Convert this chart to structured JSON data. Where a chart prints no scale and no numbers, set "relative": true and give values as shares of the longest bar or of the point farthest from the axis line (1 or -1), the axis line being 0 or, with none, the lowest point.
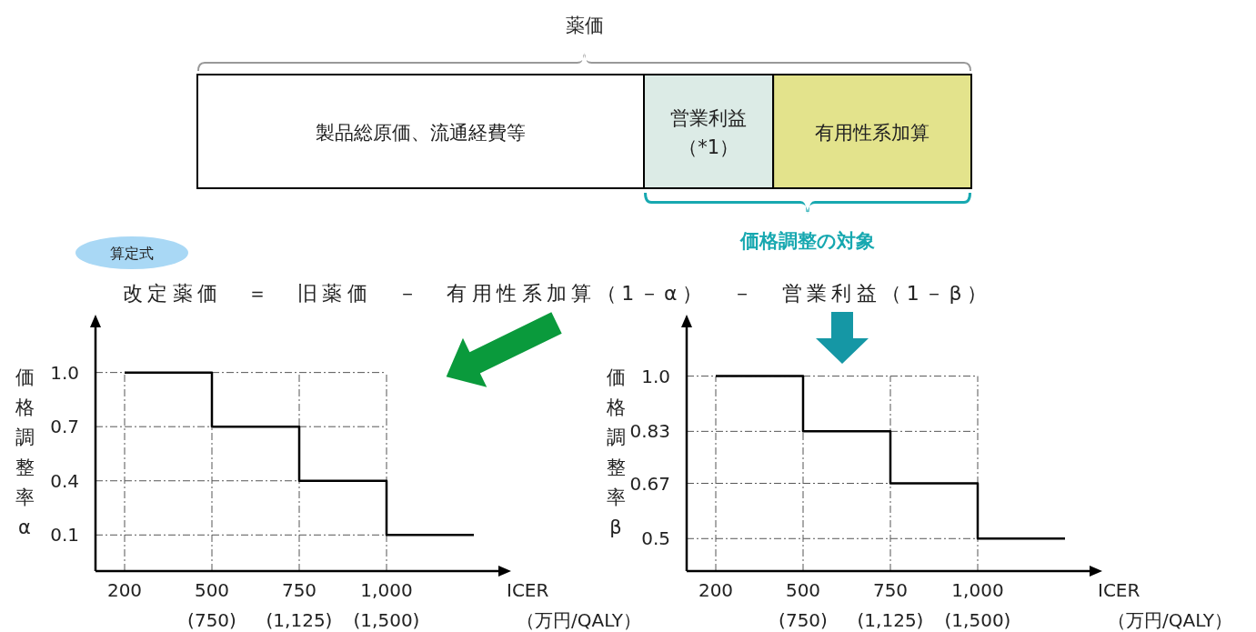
{
  "chart_data": [
    {
      "type": "bar",
      "orientation": "horizontal",
      "stacked": true,
      "relative": true,
      "title": "薬価",
      "categories": [
        null
      ],
      "series": [
        {
          "name": "製品総原価、流通経費等",
          "color": "#ffffff",
          "values": [
            0.577
          ]
        },
        {
          "name": "営業利益（*1）",
          "color": "#dcebe6",
          "values": [
            0.167
          ]
        },
        {
          "name": "有用性系加算",
          "color": "#e3e38c",
          "values": [
            0.256
          ]
        }
      ],
      "annotations": [
        "価格調整の対象",
        "算定式",
        "改定薬価　＝　旧薬価　－　有用性系加算（1－α）　－　営業利益（1－β）"
      ]
    },
    {
      "type": "step",
      "ylabel": "価格調整率α",
      "xlabel": "ICER\n（万円/QALY）",
      "categories": [
        "200",
        "500\n(750)",
        "750\n(1,125)",
        "1,000\n(1,500)",
        null
      ],
      "series": [
        {
          "color": "#000000",
          "values": [
            1.0,
            0.7,
            0.4,
            0.1,
            0.1
          ]
        }
      ],
      "ylim": [
        -0.1,
        1.25
      ],
      "yticks": [
        {
          "value": 1.0,
          "label": "1.0"
        },
        0.7,
        0.4,
        0.1
      ],
      "grid": true
    },
    {
      "type": "step",
      "ylabel": "価格調整率β",
      "xlabel": "ICER\n（万円/QALY）",
      "categories": [
        "200",
        "500\n(750)",
        "750\n(1,125)",
        "1,000\n(1,500)",
        null
      ],
      "series": [
        {
          "color": "#000000",
          "values": [
            1.0,
            0.83,
            0.67,
            0.5,
            0.5
          ]
        }
      ],
      "ylim": [
        0.4,
        1.15
      ],
      "yticks": [
        {
          "value": 1.0,
          "label": "1.0"
        },
        0.83,
        0.67,
        0.5
      ],
      "grid": true
    }
  ]
}
